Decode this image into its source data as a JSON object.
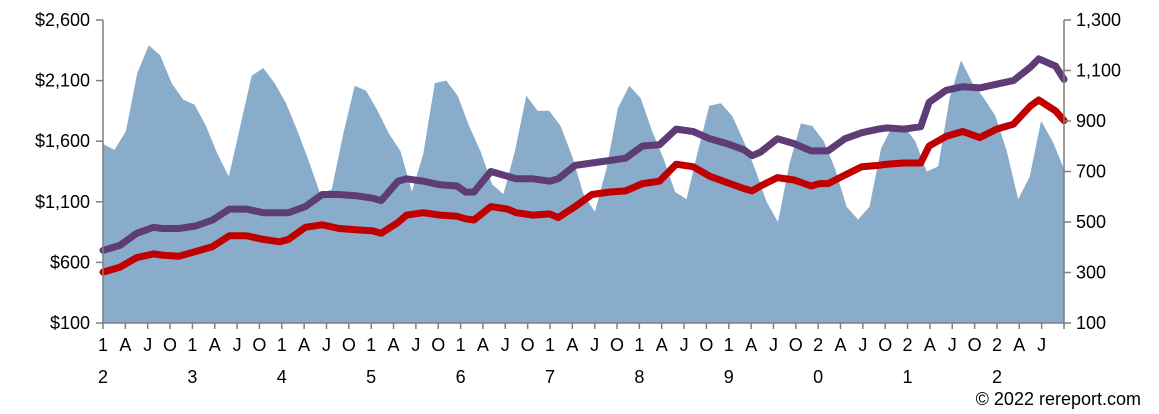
{
  "chart_data": {
    "type": "line",
    "x_tick_labels": [
      "1",
      "A",
      "J",
      "O",
      "1",
      "A",
      "J",
      "O",
      "1",
      "A",
      "J",
      "O",
      "1",
      "A",
      "J",
      "O",
      "1",
      "A",
      "J",
      "O",
      "1",
      "A",
      "J",
      "O",
      "1",
      "A",
      "J",
      "O",
      "1",
      "A",
      "J",
      "O",
      "2",
      "A",
      "J",
      "O",
      "2",
      "A",
      "J",
      "O",
      "2",
      "A",
      "J"
    ],
    "x_year_labels": [
      {
        "index": 0,
        "label": "2"
      },
      {
        "index": 4,
        "label": "3"
      },
      {
        "index": 8,
        "label": "4"
      },
      {
        "index": 12,
        "label": "5"
      },
      {
        "index": 16,
        "label": "6"
      },
      {
        "index": 20,
        "label": "7"
      },
      {
        "index": 24,
        "label": "8"
      },
      {
        "index": 28,
        "label": "9"
      },
      {
        "index": 32,
        "label": "0"
      },
      {
        "index": 36,
        "label": "1"
      },
      {
        "index": 40,
        "label": "2"
      }
    ],
    "y_left": {
      "ticks": [
        "$100",
        "$600",
        "$1,100",
        "$1,600",
        "$2,100",
        "$2,600"
      ],
      "min": 100,
      "max": 2600
    },
    "y_right": {
      "ticks": [
        "100",
        "300",
        "500",
        "700",
        "900",
        "1,100",
        "1,300"
      ],
      "min": 100,
      "max": 1300
    },
    "grid": false,
    "legend": "none",
    "series": [
      {
        "axis": "right",
        "kind": "area",
        "color": "#8aaccb",
        "points": [
          [
            0,
            810
          ],
          [
            1,
            785
          ],
          [
            2,
            860
          ],
          [
            3,
            1090
          ],
          [
            4,
            1200
          ],
          [
            5,
            1160
          ],
          [
            6,
            1050
          ],
          [
            7,
            985
          ],
          [
            8,
            965
          ],
          [
            9,
            880
          ],
          [
            10,
            770
          ],
          [
            11,
            680
          ],
          [
            12,
            880
          ],
          [
            13,
            1080
          ],
          [
            14,
            1110
          ],
          [
            15,
            1050
          ],
          [
            16,
            970
          ],
          [
            17,
            860
          ],
          [
            18,
            740
          ],
          [
            19,
            610
          ],
          [
            20,
            630
          ],
          [
            21,
            850
          ],
          [
            22,
            1040
          ],
          [
            23,
            1020
          ],
          [
            24,
            940
          ],
          [
            25,
            850
          ],
          [
            26,
            780
          ],
          [
            27,
            620
          ],
          [
            28,
            770
          ],
          [
            29,
            1050
          ],
          [
            30,
            1060
          ],
          [
            31,
            1000
          ],
          [
            32,
            880
          ],
          [
            33,
            780
          ],
          [
            34,
            650
          ],
          [
            35,
            610
          ],
          [
            36,
            780
          ],
          [
            37,
            1000
          ],
          [
            38,
            940
          ],
          [
            39,
            940
          ],
          [
            40,
            880
          ],
          [
            41,
            760
          ],
          [
            42,
            610
          ],
          [
            43,
            540
          ],
          [
            44,
            710
          ],
          [
            45,
            950
          ],
          [
            46,
            1040
          ],
          [
            47,
            990
          ],
          [
            48,
            860
          ],
          [
            49,
            750
          ],
          [
            50,
            620
          ],
          [
            51,
            590
          ],
          [
            52,
            780
          ],
          [
            53,
            960
          ],
          [
            54,
            970
          ],
          [
            55,
            920
          ],
          [
            56,
            820
          ],
          [
            57,
            710
          ],
          [
            58,
            580
          ],
          [
            59,
            500
          ],
          [
            60,
            730
          ],
          [
            61,
            890
          ],
          [
            62,
            880
          ],
          [
            63,
            820
          ],
          [
            64,
            710
          ],
          [
            65,
            560
          ],
          [
            66,
            510
          ],
          [
            67,
            560
          ],
          [
            68,
            790
          ],
          [
            69,
            880
          ],
          [
            70,
            880
          ],
          [
            71,
            820
          ],
          [
            72,
            700
          ],
          [
            73,
            720
          ],
          [
            74,
            990
          ],
          [
            75,
            1140
          ],
          [
            76,
            1050
          ],
          [
            77,
            990
          ],
          [
            78,
            920
          ],
          [
            79,
            780
          ],
          [
            80,
            590
          ],
          [
            81,
            680
          ],
          [
            82,
            900
          ],
          [
            83,
            820
          ],
          [
            84,
            710
          ]
        ]
      },
      {
        "axis": "left",
        "kind": "line",
        "color": "#5e3d77",
        "points": [
          [
            0,
            700
          ],
          [
            2,
            740
          ],
          [
            4,
            840
          ],
          [
            6,
            890
          ],
          [
            7,
            880
          ],
          [
            9,
            880
          ],
          [
            11,
            900
          ],
          [
            13,
            950
          ],
          [
            15,
            1040
          ],
          [
            17,
            1040
          ],
          [
            19,
            1010
          ],
          [
            21,
            1010
          ],
          [
            22,
            1010
          ],
          [
            24,
            1060
          ],
          [
            26,
            1160
          ],
          [
            28,
            1160
          ],
          [
            30,
            1150
          ],
          [
            32,
            1130
          ],
          [
            33,
            1110
          ],
          [
            35,
            1270
          ],
          [
            36,
            1290
          ],
          [
            38,
            1270
          ],
          [
            40,
            1240
          ],
          [
            42,
            1230
          ],
          [
            43,
            1180
          ],
          [
            44,
            1180
          ],
          [
            46,
            1350
          ],
          [
            48,
            1310
          ],
          [
            49,
            1290
          ],
          [
            51,
            1290
          ],
          [
            53,
            1270
          ],
          [
            54,
            1290
          ],
          [
            56,
            1400
          ],
          [
            58,
            1420
          ],
          [
            60,
            1440
          ],
          [
            62,
            1460
          ],
          [
            64,
            1560
          ],
          [
            66,
            1570
          ],
          [
            68,
            1700
          ],
          [
            70,
            1680
          ],
          [
            72,
            1620
          ],
          [
            74,
            1580
          ],
          [
            76,
            1530
          ],
          [
            77,
            1480
          ],
          [
            78,
            1510
          ],
          [
            80,
            1620
          ],
          [
            82,
            1580
          ],
          [
            84,
            1520
          ],
          [
            85,
            1520
          ],
          [
            86,
            1520
          ],
          [
            88,
            1620
          ],
          [
            90,
            1670
          ],
          [
            92,
            1700
          ],
          [
            93,
            1710
          ],
          [
            95,
            1700
          ],
          [
            97,
            1720
          ],
          [
            98,
            1920
          ],
          [
            100,
            2020
          ],
          [
            102,
            2050
          ],
          [
            104,
            2040
          ],
          [
            106,
            2070
          ],
          [
            108,
            2100
          ],
          [
            110,
            2210
          ],
          [
            111,
            2280
          ],
          [
            113,
            2220
          ],
          [
            114,
            2110
          ]
        ]
      },
      {
        "axis": "left",
        "kind": "line",
        "color": "#c00000",
        "points": [
          [
            0,
            520
          ],
          [
            2,
            560
          ],
          [
            4,
            640
          ],
          [
            6,
            670
          ],
          [
            7,
            660
          ],
          [
            9,
            650
          ],
          [
            11,
            690
          ],
          [
            13,
            730
          ],
          [
            15,
            820
          ],
          [
            17,
            820
          ],
          [
            19,
            790
          ],
          [
            21,
            770
          ],
          [
            22,
            790
          ],
          [
            24,
            890
          ],
          [
            26,
            910
          ],
          [
            28,
            880
          ],
          [
            30,
            870
          ],
          [
            32,
            860
          ],
          [
            33,
            840
          ],
          [
            35,
            930
          ],
          [
            36,
            990
          ],
          [
            38,
            1010
          ],
          [
            40,
            990
          ],
          [
            42,
            980
          ],
          [
            43,
            960
          ],
          [
            44,
            950
          ],
          [
            46,
            1060
          ],
          [
            48,
            1040
          ],
          [
            49,
            1010
          ],
          [
            51,
            990
          ],
          [
            53,
            1000
          ],
          [
            54,
            970
          ],
          [
            56,
            1060
          ],
          [
            58,
            1160
          ],
          [
            60,
            1180
          ],
          [
            62,
            1190
          ],
          [
            64,
            1250
          ],
          [
            66,
            1270
          ],
          [
            68,
            1410
          ],
          [
            70,
            1390
          ],
          [
            72,
            1310
          ],
          [
            74,
            1260
          ],
          [
            76,
            1210
          ],
          [
            77,
            1190
          ],
          [
            78,
            1230
          ],
          [
            80,
            1300
          ],
          [
            82,
            1280
          ],
          [
            84,
            1230
          ],
          [
            85,
            1250
          ],
          [
            86,
            1250
          ],
          [
            88,
            1320
          ],
          [
            90,
            1390
          ],
          [
            92,
            1400
          ],
          [
            93,
            1410
          ],
          [
            95,
            1420
          ],
          [
            97,
            1420
          ],
          [
            98,
            1560
          ],
          [
            100,
            1640
          ],
          [
            102,
            1680
          ],
          [
            104,
            1630
          ],
          [
            106,
            1700
          ],
          [
            108,
            1740
          ],
          [
            110,
            1890
          ],
          [
            111,
            1940
          ],
          [
            113,
            1850
          ],
          [
            114,
            1770
          ]
        ]
      }
    ]
  },
  "footer": {
    "credit": "© 2022 rereport.com"
  }
}
